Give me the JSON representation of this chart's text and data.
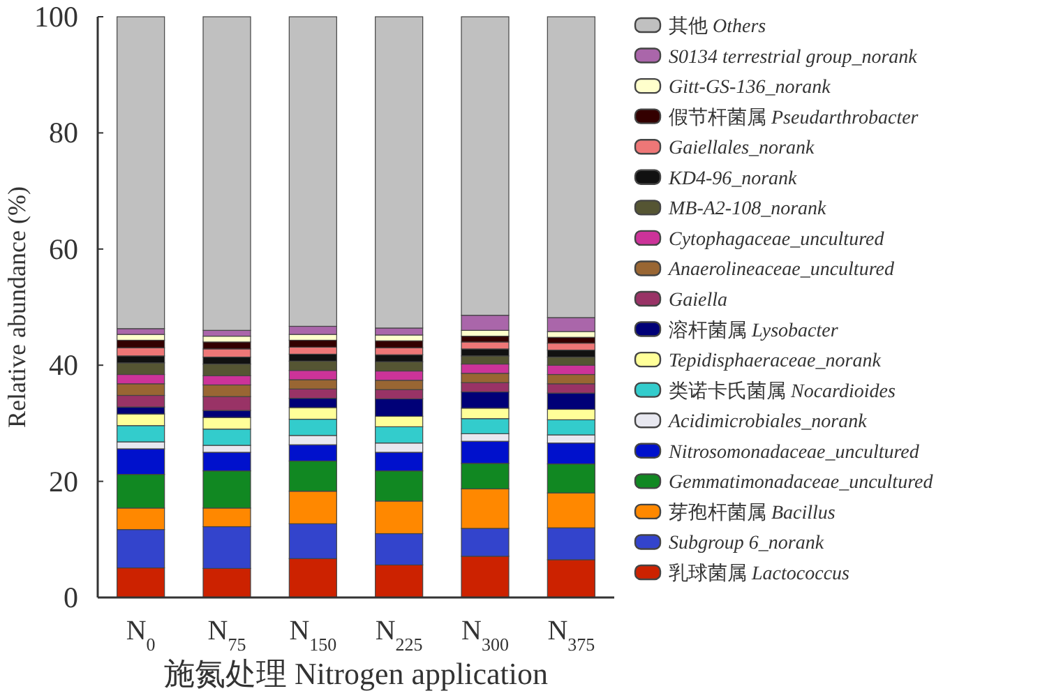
{
  "chart_data": {
    "type": "bar",
    "stacked": true,
    "xlabel": "施氮处理 Nitrogen application",
    "ylabel": "Relative abundance (%)",
    "categories": [
      "N$_{0}$",
      "N$_{75}$",
      "N$_{150}$",
      "N$_{225}$",
      "N$_{300}$",
      "N$_{375}$"
    ],
    "ylim": [
      0,
      100
    ],
    "yticks": [
      0,
      20,
      40,
      60,
      80,
      100
    ],
    "grid": false,
    "legend": "right",
    "series": [
      {
        "name": "乳球菌属 Lactococcus",
        "color": "#cc2200",
        "values": [
          5.1,
          5.0,
          6.7,
          5.6,
          7.1,
          6.5
        ]
      },
      {
        "name": "Subgroup 6_norank",
        "color": "#3344cc",
        "values": [
          6.6,
          7.2,
          6.0,
          5.4,
          4.8,
          5.5
        ]
      },
      {
        "name": "芽孢杆菌属 Bacillus",
        "color": "#ff8800",
        "values": [
          3.7,
          3.2,
          5.6,
          5.6,
          6.8,
          6.0
        ]
      },
      {
        "name": "Gemmatimonadaceae_uncultured",
        "color": "#118822",
        "values": [
          5.8,
          6.4,
          5.2,
          5.2,
          4.4,
          5.0
        ]
      },
      {
        "name": "Nitrosomonadaceae_uncultured",
        "color": "#0011cc",
        "values": [
          4.4,
          3.2,
          2.8,
          3.2,
          3.8,
          3.6
        ]
      },
      {
        "name": "Acidimicrobiales_norank",
        "color": "#e8e8f0",
        "values": [
          1.2,
          1.2,
          1.6,
          1.6,
          1.3,
          1.4
        ]
      },
      {
        "name": "类诺卡氏菌属 Nocardioides",
        "color": "#33cccc",
        "values": [
          2.8,
          2.8,
          2.8,
          2.8,
          2.6,
          2.6
        ]
      },
      {
        "name": "Tepidisphaeraceae_norank",
        "color": "#ffff99",
        "values": [
          2.0,
          2.0,
          2.0,
          1.8,
          1.8,
          1.8
        ]
      },
      {
        "name": "溶杆菌属 Lysobacter",
        "color": "#000077",
        "values": [
          1.2,
          1.2,
          1.6,
          3.0,
          2.8,
          2.8
        ]
      },
      {
        "name": "Gaiella",
        "color": "#993366",
        "values": [
          2.0,
          2.4,
          1.6,
          1.6,
          1.6,
          1.6
        ]
      },
      {
        "name": "Anaerolineaceae_uncultured",
        "color": "#996633",
        "values": [
          2.0,
          2.0,
          1.6,
          1.6,
          1.6,
          1.6
        ]
      },
      {
        "name": "Cytophagaceae_uncultured",
        "color": "#cc3399",
        "values": [
          1.6,
          1.6,
          1.6,
          1.6,
          1.6,
          1.6
        ]
      },
      {
        "name": "MB-A2-108_norank",
        "color": "#555533",
        "values": [
          2.0,
          2.0,
          1.6,
          1.6,
          1.4,
          1.4
        ]
      },
      {
        "name": "KD4-96_norank",
        "color": "#111111",
        "values": [
          1.2,
          1.2,
          1.2,
          1.2,
          1.2,
          1.2
        ]
      },
      {
        "name": "Gaiellales_norank",
        "color": "#ee7777",
        "values": [
          1.4,
          1.4,
          1.2,
          1.2,
          1.2,
          1.2
        ]
      },
      {
        "name": "假节杆菌属 Pseudarthrobacter",
        "color": "#330000",
        "values": [
          1.3,
          1.2,
          1.2,
          1.2,
          1.0,
          1.0
        ]
      },
      {
        "name": "Gitt-GS-136_norank",
        "color": "#ffffcc",
        "values": [
          1.0,
          1.0,
          1.0,
          1.0,
          1.0,
          1.0
        ]
      },
      {
        "name": "S0134 terrestrial group_norank",
        "color": "#aa66aa",
        "values": [
          1.0,
          1.0,
          1.4,
          1.2,
          2.6,
          2.4
        ]
      },
      {
        "name": "其他 Others",
        "color": "#c0c0c0",
        "values": [
          53.7,
          54.0,
          53.3,
          53.6,
          51.4,
          51.8
        ]
      }
    ]
  }
}
